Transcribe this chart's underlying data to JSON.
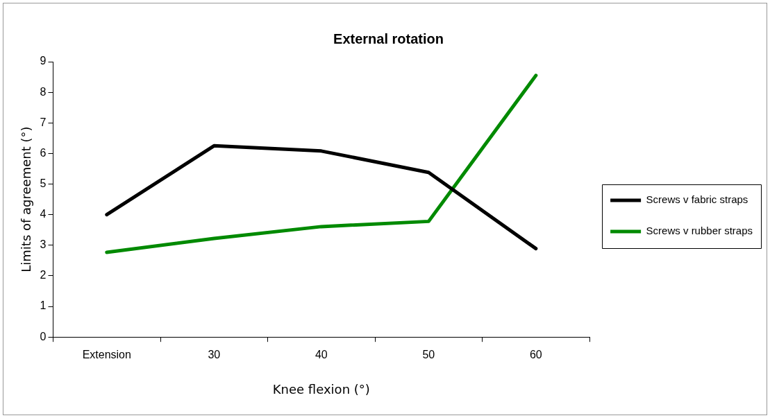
{
  "chart_data": {
    "type": "line",
    "title": "External rotation",
    "xlabel": "Knee flexion (°)",
    "ylabel": "Limits of agreement (°)",
    "categories": [
      "Extension",
      "30",
      "40",
      "50",
      "60"
    ],
    "series": [
      {
        "name": "Screws v fabric straps",
        "color": "#000000",
        "values": [
          4.0,
          6.25,
          6.08,
          5.38,
          2.89
        ]
      },
      {
        "name": "Screws v rubber straps",
        "color": "#008a00",
        "values": [
          2.77,
          3.22,
          3.61,
          3.78,
          8.55
        ]
      }
    ],
    "ylim": [
      0,
      9
    ],
    "yticks": [
      0,
      1,
      2,
      3,
      4,
      5,
      6,
      7,
      8,
      9
    ],
    "grid": false,
    "legend": "right",
    "marker": "none",
    "line_style": "solid"
  }
}
